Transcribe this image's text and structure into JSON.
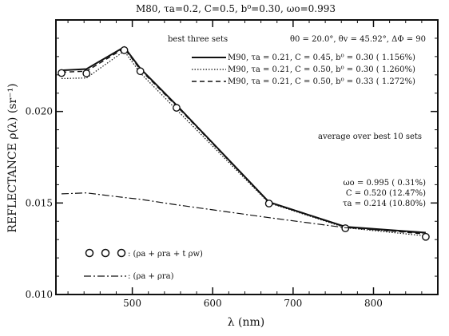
{
  "chart_data": {
    "type": "line",
    "title": "M80, τa=0.2, C=0.5, b⁰=0.30, ωo=0.993",
    "xlabel": "λ (nm)",
    "ylabel": "REFLECTANCE ρ(λ) (sr⁻¹)",
    "xlim": [
      405,
      880
    ],
    "ylim": [
      0.01,
      0.025
    ],
    "xticks": [
      500,
      600,
      700,
      800
    ],
    "xtick_labels": [
      "500",
      "600",
      "700",
      "800"
    ],
    "yticks": [
      0.01,
      0.015,
      0.02
    ],
    "ytick_labels": [
      "0.010",
      "0.015",
      "0.020"
    ],
    "grid": false,
    "x": [
      412,
      443,
      490,
      510,
      555,
      670,
      765,
      865
    ],
    "series": [
      {
        "name": "M90, τa = 0.21, C = 0.45, b⁰ = 0.30 ( 1.156%)",
        "style": "solid",
        "values": [
          0.02225,
          0.02232,
          0.02352,
          0.02235,
          0.02035,
          0.01505,
          0.0137,
          0.01338
        ]
      },
      {
        "name": "M90, τa = 0.21, C = 0.50, b⁰ = 0.30 ( 1.260%)",
        "style": "dotted",
        "values": [
          0.0218,
          0.02183,
          0.0233,
          0.0221,
          0.0201,
          0.015,
          0.01365,
          0.0132
        ]
      },
      {
        "name": "M90, τa = 0.21, C = 0.50, b⁰ = 0.33 ( 1.272%)",
        "style": "dashed",
        "values": [
          0.02215,
          0.0222,
          0.02345,
          0.02228,
          0.0203,
          0.01503,
          0.01368,
          0.0133
        ]
      },
      {
        "name": "(ρa + ρra + t ρw)",
        "style": "circles",
        "values": [
          0.0221,
          0.02208,
          0.02335,
          0.0222,
          0.0202,
          0.01497,
          0.01362,
          0.01315
        ]
      },
      {
        "name": "(ρa + ρra)",
        "style": "dashdot",
        "values": [
          0.0155,
          0.01555,
          0.0153,
          0.0152,
          0.0149,
          0.0142,
          0.01365,
          0.01335
        ]
      }
    ],
    "legend_title": "best three sets",
    "geometry_note": "θ0 = 20.0°, θv = 45.92°, ΔΦ = 90",
    "average_title": "average over best 10 sets",
    "average_lines": [
      "ωo = 0.995 ( 0.31%)",
      "C = 0.520 (12.47%)",
      "τa = 0.214 (10.80%)"
    ],
    "lower_legend": [
      {
        "glyphs": "○ ○ ○",
        "label": ": (ρa + ρra + t ρw)",
        "style": "circles"
      },
      {
        "glyphs": "",
        "label": ": (ρa + ρra)",
        "style": "dashdot"
      }
    ]
  }
}
